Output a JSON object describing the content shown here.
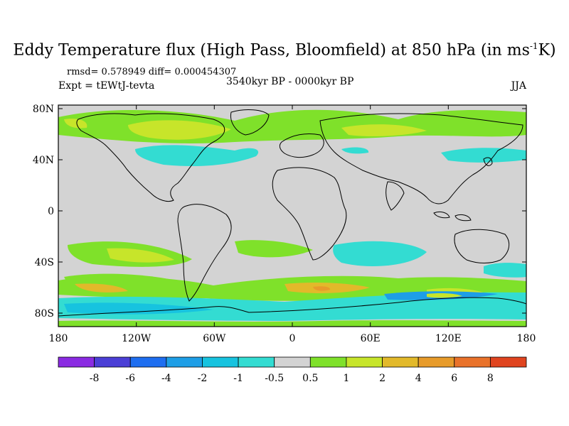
{
  "title_main": "Eddy Temperature flux (High Pass, Bloomfield) at 850 hPa (in ms",
  "title_sup": "-1",
  "title_end": "K)",
  "stats": "rmsd= 0.578949 diff= 0.000454307",
  "experiment": "Expt = tEWtJ-tevta",
  "period": "3540kyr BP - 0000kyr BP",
  "season": "JJA",
  "map": {
    "lon_ticks": [
      "180",
      "120W",
      "60W",
      "0",
      "60E",
      "120E",
      "180"
    ],
    "lat_ticks": [
      "80N",
      "40N",
      "0",
      "40S",
      "80S"
    ],
    "background_color": "#d3d3d3"
  },
  "colorbar": {
    "labels": [
      "-8",
      "-6",
      "-4",
      "-2",
      "-1",
      "-0.5",
      "0.5",
      "1",
      "2",
      "4",
      "6",
      "8"
    ],
    "colors": [
      "#8a2be2",
      "#4b3fd6",
      "#1e6ef0",
      "#1e9ee6",
      "#17c3df",
      "#33dcd2",
      "#d3d3d3",
      "#7fe12a",
      "#c7e52a",
      "#e2b92a",
      "#e79b2a",
      "#e9722a",
      "#e0441f"
    ]
  }
}
